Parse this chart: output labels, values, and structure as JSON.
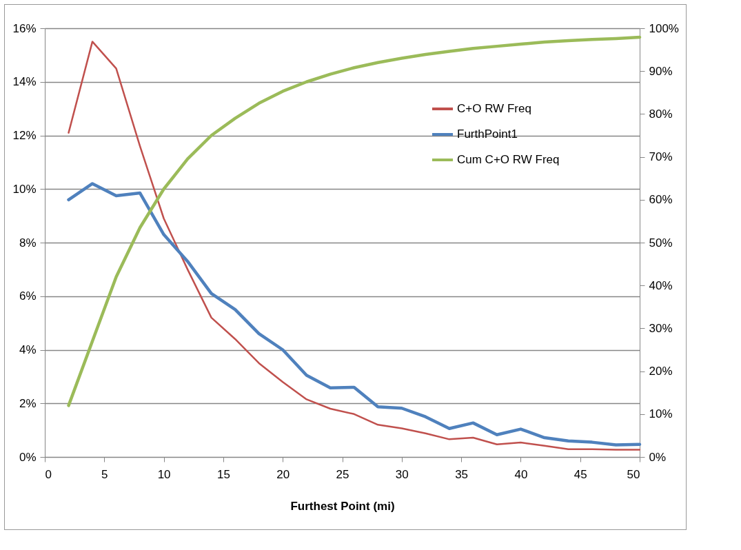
{
  "chart_data": {
    "type": "line",
    "xlabel": "Furthest Point (mi)",
    "x": [
      2,
      4,
      6,
      8,
      10,
      12,
      14,
      16,
      18,
      20,
      22,
      24,
      26,
      28,
      30,
      32,
      34,
      36,
      38,
      40,
      42,
      44,
      46,
      48,
      50
    ],
    "series": [
      {
        "name": "C+O RW Freq",
        "color": "#c0504d",
        "values": [
          12.1,
          15.5,
          14.5,
          11.6,
          8.9,
          7.0,
          5.2,
          4.4,
          3.5,
          2.8,
          2.15,
          1.8,
          1.6,
          1.2,
          1.07,
          0.88,
          0.66,
          0.72,
          0.47,
          0.54,
          0.42,
          0.29,
          0.29,
          0.27,
          0.27
        ]
      },
      {
        "name": "FurthPoint1",
        "color": "#4f81bd",
        "values": [
          9.6,
          10.2,
          9.75,
          9.85,
          8.3,
          7.3,
          6.1,
          5.5,
          4.6,
          4.0,
          3.05,
          2.58,
          2.6,
          1.87,
          1.82,
          1.5,
          1.06,
          1.27,
          0.83,
          1.04,
          0.72,
          0.6,
          0.55,
          0.45,
          0.47
        ]
      },
      {
        "name": "Cum C+O RW Freq",
        "color": "#9bbb59",
        "axis": "y2",
        "values": [
          12,
          27,
          42,
          53.5,
          62.5,
          69.5,
          75,
          79,
          82.5,
          85.3,
          87.5,
          89.3,
          90.8,
          92,
          93,
          93.9,
          94.6,
          95.3,
          95.8,
          96.3,
          96.8,
          97.1,
          97.4,
          97.6,
          97.9
        ]
      }
    ],
    "xlim": [
      0,
      50
    ],
    "xticks": [
      0,
      5,
      10,
      15,
      20,
      25,
      30,
      35,
      40,
      45,
      50
    ],
    "ylim": [
      0,
      16
    ],
    "yticks": [
      {
        "value": 0,
        "label": "0%"
      },
      {
        "value": 2,
        "label": "2%"
      },
      {
        "value": 4,
        "label": "4%"
      },
      {
        "value": 6,
        "label": "6%"
      },
      {
        "value": 8,
        "label": "8%"
      },
      {
        "value": 10,
        "label": "10%"
      },
      {
        "value": 12,
        "label": "12%"
      },
      {
        "value": 14,
        "label": "14%"
      },
      {
        "value": 16,
        "label": "16%"
      }
    ],
    "y2lim": [
      0,
      100
    ],
    "y2ticks": [
      {
        "value": 0,
        "label": "0%"
      },
      {
        "value": 10,
        "label": "10%"
      },
      {
        "value": 20,
        "label": "20%"
      },
      {
        "value": 30,
        "label": "30%"
      },
      {
        "value": 40,
        "label": "40%"
      },
      {
        "value": 50,
        "label": "50%"
      },
      {
        "value": 60,
        "label": "60%"
      },
      {
        "value": 70,
        "label": "70%"
      },
      {
        "value": 80,
        "label": "80%"
      },
      {
        "value": 90,
        "label": "90%"
      },
      {
        "value": 100,
        "label": "100%"
      }
    ],
    "grid": "y",
    "legend": "top right",
    "marker": "none",
    "line_style": "solid"
  }
}
